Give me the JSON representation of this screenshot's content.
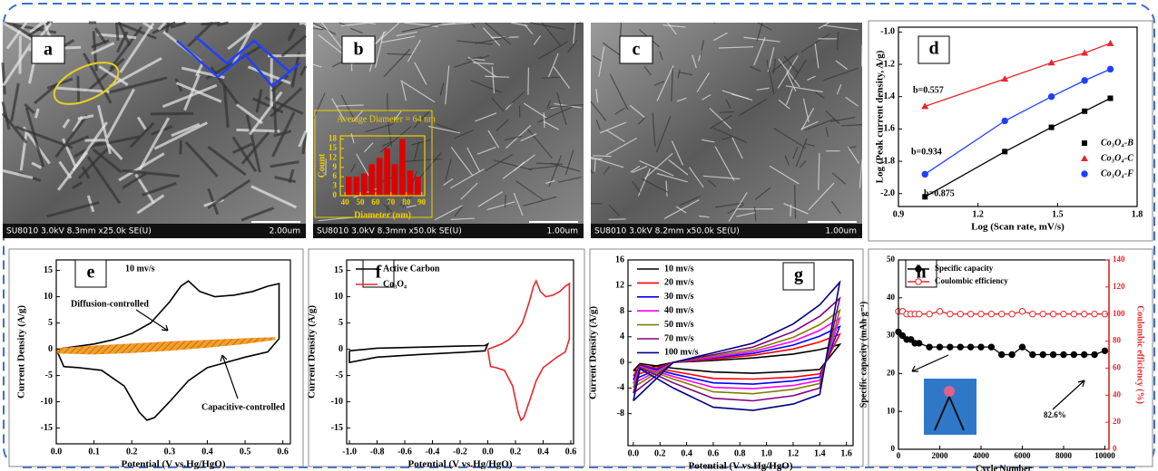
{
  "images": [
    {
      "label": "a",
      "info": "SU8010 3.0kV 8.3mm x25.0k SE(U)",
      "scale": "2.00um"
    },
    {
      "label": "b",
      "info": "SU8010 3.0kV 8.3mm x50.0k SE(U)",
      "scale": "1.00um"
    },
    {
      "label": "c",
      "info": "SU8010 3.0kV 8.2mm x50.0k SE(U)",
      "scale": "1.00um"
    }
  ],
  "chart_data": [
    {
      "type": "histogram",
      "title": "Average Diameter = 64 nm",
      "xlabel": "Diameter (nm)",
      "ylabel": "Count",
      "bins": [
        40,
        45,
        50,
        55,
        60,
        65,
        70,
        75,
        80,
        85,
        90
      ],
      "values": [
        6,
        6,
        7,
        10,
        12,
        15,
        10,
        18,
        8,
        6
      ],
      "color": "#e00000",
      "xlim": [
        37,
        92
      ],
      "ylim": [
        0,
        19
      ],
      "xticks": [
        40,
        50,
        60,
        70,
        80,
        90
      ],
      "yticks": [
        0,
        3,
        6,
        9,
        12,
        15,
        18
      ]
    },
    {
      "type": "scatter",
      "label": "d",
      "xlabel": "Log (Scan rate, mV/s)",
      "ylabel": "Log (Peak current density, A/g)",
      "xlim": [
        0.9,
        1.8
      ],
      "ylim": [
        -2.08,
        -0.97
      ],
      "xticks": [
        0.9,
        1.2,
        1.5,
        1.8
      ],
      "yticks": [
        {
          "value": -2,
          "label": "-2.0"
        },
        -1.8,
        -1.6,
        -1.4,
        -1.2,
        {
          "value": -1,
          "label": "-1.0"
        }
      ],
      "x": [
        1,
        1.301,
        1.477,
        1.602,
        1.699
      ],
      "legend": "lower right",
      "series": [
        {
          "name": "Co₃O₄-B",
          "color": "#000000",
          "marker": "square",
          "values": [
            -2.02,
            -1.74,
            -1.59,
            -1.49,
            -1.41
          ]
        },
        {
          "name": "Co₃O₄-C",
          "color": "#e8262b",
          "marker": "triangle",
          "values": [
            -1.46,
            -1.29,
            -1.19,
            -1.13,
            -1.07
          ]
        },
        {
          "name": "Co₃O₄-F",
          "color": "#1f3fff",
          "marker": "circle",
          "values": [
            -1.88,
            -1.55,
            -1.4,
            -1.3,
            -1.23
          ]
        }
      ],
      "annotations": [
        "b=0.557",
        "b=0.934",
        "b=0.875"
      ]
    },
    {
      "type": "line",
      "label": "e",
      "xlabel": "Potential (V vs.Hg/HgO)",
      "ylabel": "Current Density (A/g)",
      "xlim": [
        0,
        0.62
      ],
      "ylim": [
        -18,
        17
      ],
      "xticks": [
        {
          "value": 0,
          "label": "0.0"
        },
        0.1,
        0.2,
        0.3,
        0.4,
        0.5,
        0.6
      ],
      "yticks": [
        -15,
        -10,
        -5,
        0,
        5,
        10,
        15
      ],
      "series": [
        {
          "color": "#000000",
          "x": [
            0,
            0.05,
            0.1,
            0.15,
            0.2,
            0.25,
            0.3,
            0.33,
            0.35,
            0.38,
            0.42,
            0.47,
            0.52,
            0.56,
            0.59,
            0.59,
            0.56,
            0.5,
            0.45,
            0.4,
            0.35,
            0.3,
            0.26,
            0.24,
            0.22,
            0.18,
            0.12,
            0.06,
            0.02,
            0
          ],
          "values": [
            0,
            0.5,
            1,
            1.8,
            3,
            5,
            9,
            12,
            13,
            11,
            10,
            10.3,
            11,
            12,
            12.5,
            2,
            -0.5,
            -1.5,
            -2.5,
            -3.5,
            -6,
            -10,
            -13,
            -13.5,
            -12,
            -7,
            -4,
            -3.5,
            -3.3,
            0
          ]
        },
        {
          "color": "#e8820c",
          "area": true,
          "x": [
            0,
            0.1,
            0.2,
            0.3,
            0.4,
            0.5,
            0.58,
            0.58,
            0.5,
            0.4,
            0.3,
            0.2,
            0.1,
            0
          ],
          "values": [
            0.2,
            0.7,
            1.1,
            1.5,
            1.8,
            2.1,
            2.3,
            1.8,
            1,
            0.3,
            -0.3,
            -0.7,
            -1,
            -0.8
          ]
        }
      ],
      "annotations": [
        "10 mv/s",
        "Diffusion-controlled",
        "Capacitive-controlled"
      ]
    },
    {
      "type": "line",
      "label": "f",
      "xlabel": "Potential (V vs.Hg/HgO)",
      "ylabel": "Current Density (A/g)",
      "xlim": [
        -1.02,
        0.62
      ],
      "ylim": [
        -18,
        17
      ],
      "xticks": [
        {
          "value": -1,
          "label": "-1.0"
        },
        -0.8,
        -0.6,
        -0.4,
        -0.2,
        {
          "value": 0,
          "label": "0.0"
        },
        0.2,
        0.4,
        0.6
      ],
      "yticks": [
        -15,
        -10,
        -5,
        0,
        5,
        10,
        15
      ],
      "legend": "upper left",
      "series": [
        {
          "name": "Active Carbon",
          "color": "#000000",
          "x": [
            -1,
            -0.8,
            -0.5,
            -0.2,
            -0.02,
            0,
            -0.02,
            -0.2,
            -0.5,
            -0.8,
            -1,
            -1
          ],
          "values": [
            -0.3,
            0.2,
            0.4,
            0.6,
            0.7,
            1,
            -0.3,
            -0.6,
            -1,
            -1.5,
            -2.5,
            -0.3
          ]
        },
        {
          "name": "Co₃O₄",
          "color": "#e8262b",
          "x": [
            0,
            0.05,
            0.1,
            0.15,
            0.2,
            0.25,
            0.3,
            0.33,
            0.35,
            0.38,
            0.42,
            0.47,
            0.52,
            0.56,
            0.59,
            0.59,
            0.56,
            0.5,
            0.45,
            0.4,
            0.35,
            0.3,
            0.26,
            0.24,
            0.22,
            0.18,
            0.12,
            0.06,
            0.02,
            0
          ],
          "values": [
            0,
            0.5,
            1,
            1.8,
            3,
            5,
            9,
            12,
            13,
            11,
            10,
            10.3,
            11,
            12,
            12.5,
            2,
            -0.5,
            -1.5,
            -2.5,
            -3.5,
            -6,
            -10,
            -13,
            -13.5,
            -12,
            -7,
            -4,
            -3.5,
            -3.3,
            0
          ]
        }
      ]
    },
    {
      "type": "line",
      "label": "g",
      "xlabel": "Potential (V vs.Hg/HgO)",
      "ylabel": "Current Density (A/g)",
      "xlim": [
        -0.04,
        1.65
      ],
      "ylim": [
        -13,
        16
      ],
      "xticks": [
        {
          "value": 0,
          "label": "0.0"
        },
        0.2,
        0.4,
        0.6,
        0.8,
        {
          "value": 1,
          "label": "1.0"
        },
        1.2,
        1.4,
        1.6
      ],
      "yticks": [
        -8,
        -4,
        0,
        4,
        8,
        12,
        16
      ],
      "legend": "upper left",
      "x": [
        0,
        0.3,
        0.6,
        0.9,
        1.2,
        1.4,
        1.55,
        1.4,
        1.2,
        0.9,
        0.6,
        0.3,
        0.05,
        0
      ],
      "series": [
        {
          "name": "10 mv/s",
          "color": "#000000",
          "values": [
            -1.3,
            0,
            0.3,
            0.7,
            1.3,
            2,
            2.8,
            -1.1,
            -1.4,
            -1.7,
            -1.5,
            -0.9,
            -0.2,
            -1.3
          ]
        },
        {
          "name": "20 mv/s",
          "color": "#ff0000",
          "values": [
            -2.1,
            0,
            0.5,
            1.1,
            2.1,
            3.2,
            4.4,
            -1.8,
            -2.3,
            -2.6,
            -2.5,
            -1.4,
            -0.4,
            -2.1
          ]
        },
        {
          "name": "30 mv/s",
          "color": "#0000ff",
          "values": [
            -2.7,
            0,
            0.7,
            1.4,
            2.7,
            4.1,
            5.6,
            -2.3,
            -2.9,
            -3.4,
            -3.2,
            -1.8,
            -0.5,
            -2.7
          ]
        },
        {
          "name": "40 mv/s",
          "color": "#ff00ff",
          "values": [
            -3.3,
            0,
            0.8,
            1.7,
            3.3,
            5,
            6.9,
            -2.8,
            -3.6,
            -4.1,
            -3.9,
            -2.2,
            -0.6,
            -3.3
          ]
        },
        {
          "name": "50 mv/s",
          "color": "#808000",
          "values": [
            -3.9,
            0,
            1,
            2,
            3.9,
            5.9,
            8.1,
            -3.3,
            -4.2,
            -4.9,
            -4.6,
            -2.6,
            -0.7,
            -3.9
          ]
        },
        {
          "name": "70 mv/s",
          "color": "#800080",
          "values": [
            -4.8,
            0,
            1.2,
            2.4,
            4.8,
            7.2,
            10,
            -4,
            -5.2,
            -6,
            -5.6,
            -3.2,
            -0.8,
            -4.8
          ]
        },
        {
          "name": "100 mv/s",
          "color": "#000080",
          "values": [
            -6,
            0,
            1.5,
            3,
            6,
            9,
            12.5,
            -5,
            -6.5,
            -7.5,
            -7,
            -4,
            -1,
            -6
          ]
        }
      ]
    },
    {
      "type": "scatter",
      "label": "h",
      "xlabel": "Cycle Number",
      "ylabel": "Specific capacity (mAh g⁻¹)",
      "y2label": "Coulombic efficiency (%)",
      "xlim": [
        0,
        10200
      ],
      "ylim": [
        0,
        50
      ],
      "y2lim": [
        0,
        140
      ],
      "xticks": [
        0,
        2000,
        4000,
        6000,
        8000,
        10000
      ],
      "yticks": [
        0,
        10,
        20,
        30,
        40,
        50
      ],
      "y2ticks": [
        0,
        20,
        40,
        60,
        80,
        100,
        120,
        140
      ],
      "legend": "upper left",
      "x": [
        0,
        200,
        400,
        600,
        800,
        1000,
        1500,
        2000,
        2500,
        3000,
        3500,
        4000,
        4500,
        5000,
        5500,
        6000,
        6500,
        7000,
        7500,
        8000,
        8500,
        9000,
        9500,
        10000
      ],
      "series": [
        {
          "name": "Specific capacity",
          "color": "#000000",
          "marker": "circle",
          "values": [
            31,
            30,
            29,
            29,
            28,
            28,
            27,
            27,
            27,
            27,
            27,
            27,
            27,
            25,
            25,
            27,
            25,
            25,
            25,
            25,
            25,
            25,
            25,
            26
          ]
        },
        {
          "name": "Coulombic efficiency",
          "color": "#e8262b",
          "marker": "circle-open",
          "axis": "y2",
          "values": [
            102,
            102,
            100,
            100,
            100,
            100,
            100,
            102,
            100,
            100,
            100,
            100,
            100,
            100,
            100,
            102,
            100,
            100,
            100,
            100,
            100,
            100,
            100,
            100
          ]
        }
      ],
      "annotations": [
        "82.6%"
      ]
    }
  ]
}
